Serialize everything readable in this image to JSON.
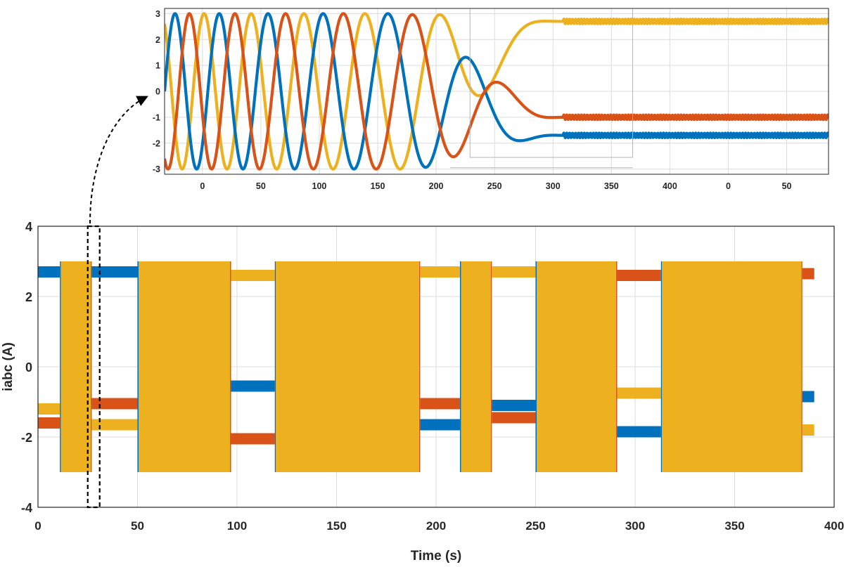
{
  "colors": {
    "phase_a": "#0072BD",
    "phase_b": "#D95319",
    "phase_c": "#EDB120",
    "grid": "#dcdcdc",
    "axis": "#262626"
  },
  "chart_data": [
    {
      "id": "main",
      "type": "line",
      "xlabel": "Time (s)",
      "ylabel": "iabc (A)",
      "xlim": [
        0,
        400
      ],
      "ylim": [
        -4,
        4
      ],
      "xticks": [
        "0",
        "50",
        "100",
        "150",
        "200",
        "250",
        "300",
        "350",
        "400"
      ],
      "yticks": [
        "-4",
        "-2",
        "0",
        "2",
        "4"
      ],
      "grid": true,
      "series": [
        {
          "color": "#0072BD"
        },
        {
          "color": "#D95319"
        },
        {
          "color": "#EDB120"
        }
      ],
      "segments": [
        {
          "t0": 0,
          "t1": 11,
          "kind": "dc",
          "a": 2.7,
          "b": -1.6,
          "c": -1.2
        },
        {
          "t0": 11,
          "t1": 27,
          "kind": "ac",
          "amp": 3
        },
        {
          "t0": 27,
          "t1": 50,
          "kind": "dc",
          "a": 2.7,
          "b": -1.05,
          "c": -1.65
        },
        {
          "t0": 50,
          "t1": 97,
          "kind": "ac",
          "amp": 3
        },
        {
          "t0": 97,
          "t1": 119,
          "kind": "dc",
          "a": -0.55,
          "b": -2.05,
          "c": 2.6
        },
        {
          "t0": 119,
          "t1": 192,
          "kind": "ac",
          "amp": 3
        },
        {
          "t0": 192,
          "t1": 212,
          "kind": "dc",
          "a": -1.65,
          "b": -1.05,
          "c": 2.7
        },
        {
          "t0": 212,
          "t1": 228,
          "kind": "ac",
          "amp": 3
        },
        {
          "t0": 228,
          "t1": 250,
          "kind": "dc",
          "a": -1.1,
          "b": -1.45,
          "c": 2.7
        },
        {
          "t0": 250,
          "t1": 291,
          "kind": "ac",
          "amp": 3
        },
        {
          "t0": 291,
          "t1": 313,
          "kind": "dc",
          "a": -1.85,
          "b": 2.6,
          "c": -0.75
        },
        {
          "t0": 313,
          "t1": 384,
          "kind": "ac",
          "amp": 3
        },
        {
          "t0": 384,
          "t1": 390,
          "kind": "dc",
          "a": -0.85,
          "b": 2.65,
          "c": -1.8
        }
      ],
      "highlight_window": [
        25,
        31
      ]
    },
    {
      "id": "zoom",
      "type": "line",
      "xticks": [
        "0",
        "50",
        "100",
        "150",
        "200",
        "250",
        "300",
        "350",
        "400",
        "0",
        "50"
      ],
      "yticks": [
        "3",
        "2",
        "1",
        "0",
        "-1",
        "-2",
        "-3"
      ],
      "ylim": [
        -3.2,
        3.2
      ],
      "grid": true,
      "final_levels": {
        "a": -1.7,
        "b": -1.0,
        "c": 2.7
      }
    }
  ]
}
